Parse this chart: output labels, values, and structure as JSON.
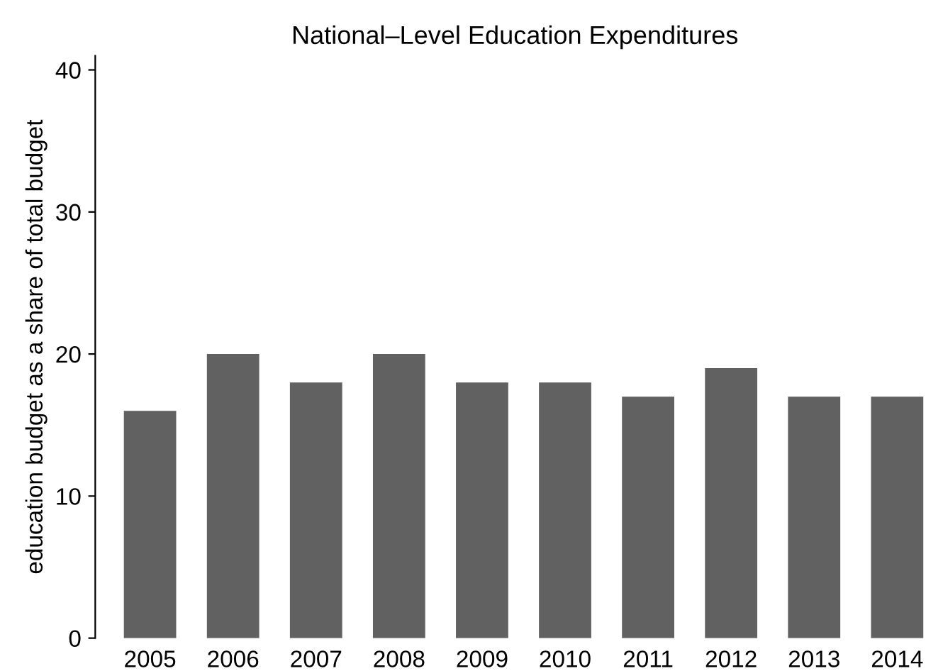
{
  "chart_data": {
    "type": "bar",
    "title": "National–Level Education Expenditures",
    "ylabel": "education budget as a share of total budget",
    "categories": [
      "2005",
      "2006",
      "2007",
      "2008",
      "2009",
      "2010",
      "2011",
      "2012",
      "2013",
      "2014"
    ],
    "values": [
      16,
      20,
      18,
      20,
      18,
      18,
      17,
      19,
      17,
      17
    ],
    "color": "#616161",
    "ylim": [
      0,
      41
    ],
    "yticks": [
      0,
      10,
      20,
      30,
      40
    ],
    "grid": false
  }
}
